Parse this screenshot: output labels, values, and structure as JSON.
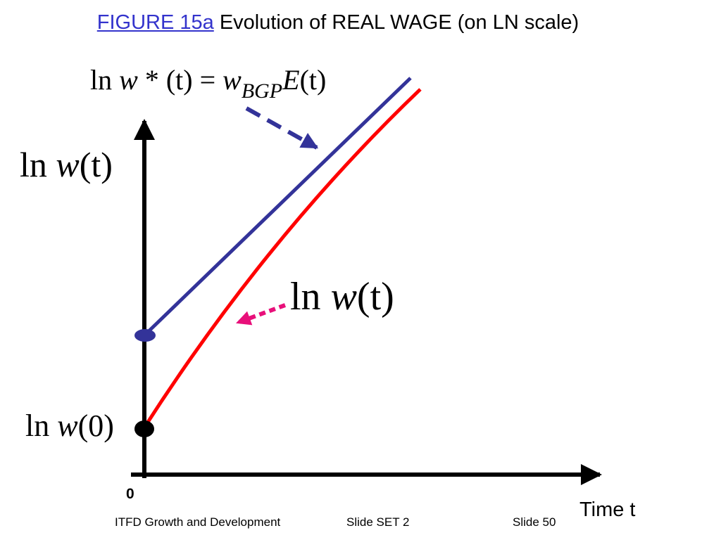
{
  "title": {
    "figure_label": "FIGURE 15a",
    "caption": " Evolution of REAL WAGE (on LN scale)"
  },
  "equations": {
    "bgp": {
      "ln": "ln",
      "w_star": "w",
      "star_t": "* (t) =",
      "w": "w",
      "subscript": "BGP",
      "E": "E",
      "close": "(t)"
    },
    "y_axis_label": {
      "ln": "ln",
      "w": "w",
      "arg": "(t)"
    },
    "curve_label": {
      "ln": "ln",
      "w": "w",
      "arg": "(t)"
    },
    "origin_label": {
      "ln": "ln",
      "w": "w",
      "arg": "(0)"
    }
  },
  "axes": {
    "origin": "0",
    "x_label": "Time t"
  },
  "colors": {
    "bgp_line": "#333399",
    "actual_line": "#ff0000",
    "bgp_arrow": "#333399",
    "actual_arrow": "#e8107a",
    "axis": "#000000"
  },
  "footer": {
    "course": "ITFD Growth and Development",
    "set": "Slide SET 2",
    "slide": "Slide 50"
  }
}
